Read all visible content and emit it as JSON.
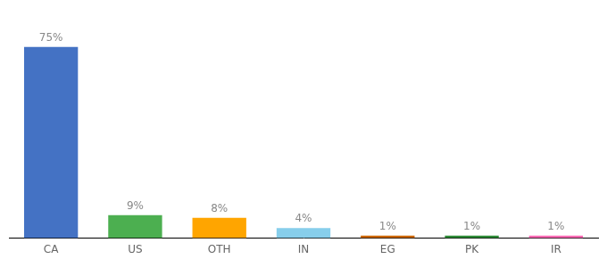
{
  "chart_data": {
    "type": "bar",
    "categories": [
      "CA",
      "US",
      "OTH",
      "IN",
      "EG",
      "PK",
      "IR"
    ],
    "values": [
      75,
      9,
      8,
      4,
      1,
      1,
      1
    ],
    "value_labels": [
      "75%",
      "9%",
      "8%",
      "4%",
      "1%",
      "1%",
      "1%"
    ],
    "colors": [
      "#4472c4",
      "#4caf50",
      "#ffa500",
      "#87ceeb",
      "#cc6600",
      "#2e8b37",
      "#ff69b4"
    ],
    "ylim": [
      0,
      85
    ],
    "grid": false,
    "data_labels": true,
    "tick_labels": "x"
  }
}
